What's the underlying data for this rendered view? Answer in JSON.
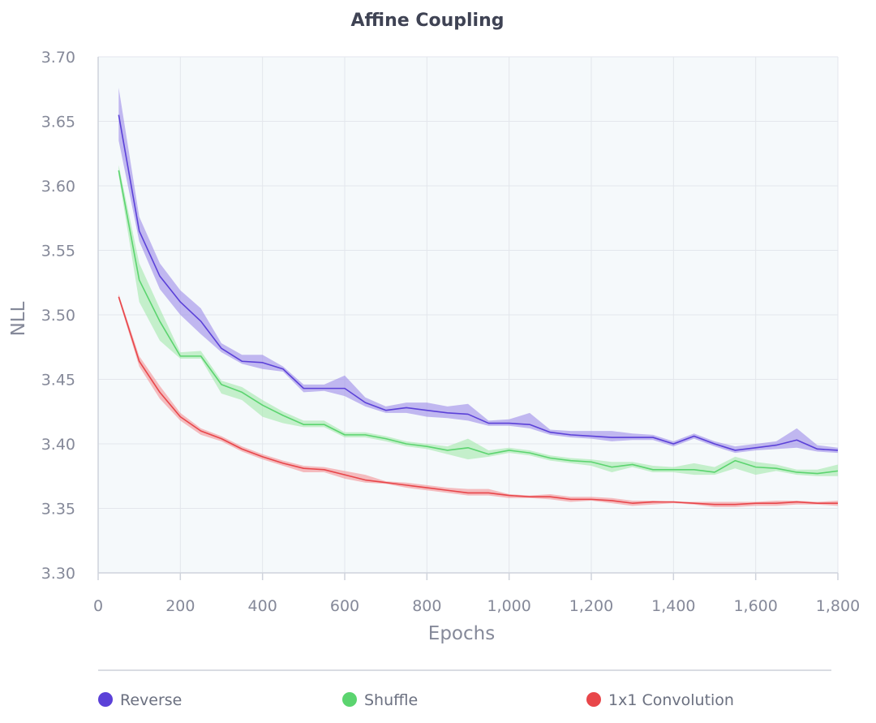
{
  "chart_data": {
    "type": "line",
    "title": "Affine Coupling",
    "xlabel": "Epochs",
    "ylabel": "NLL",
    "xlim": [
      0,
      1800
    ],
    "ylim": [
      3.3,
      3.7
    ],
    "xticks": [
      0,
      200,
      400,
      600,
      800,
      1000,
      1200,
      1400,
      1600,
      1800
    ],
    "xtick_labels": [
      "0",
      "200",
      "400",
      "600",
      "800",
      "1,000",
      "1,200",
      "1,400",
      "1,600",
      "1,800"
    ],
    "yticks": [
      3.3,
      3.35,
      3.4,
      3.45,
      3.5,
      3.55,
      3.6,
      3.65,
      3.7
    ],
    "ytick_labels": [
      "3.30",
      "3.35",
      "3.40",
      "3.45",
      "3.50",
      "3.55",
      "3.60",
      "3.65",
      "3.70"
    ],
    "grid": true,
    "legend_position": "bottom",
    "x": [
      50,
      100,
      150,
      200,
      250,
      300,
      350,
      400,
      450,
      500,
      550,
      600,
      650,
      700,
      750,
      800,
      850,
      900,
      950,
      1000,
      1050,
      1100,
      1150,
      1200,
      1250,
      1300,
      1350,
      1400,
      1450,
      1500,
      1550,
      1600,
      1650,
      1700,
      1750,
      1800
    ],
    "series": [
      {
        "name": "Reverse",
        "color": "#5b41d8",
        "band_color": "#a393ea",
        "values": [
          3.655,
          3.565,
          3.53,
          3.51,
          3.495,
          3.474,
          3.464,
          3.463,
          3.458,
          3.443,
          3.443,
          3.443,
          3.432,
          3.426,
          3.428,
          3.426,
          3.424,
          3.423,
          3.416,
          3.416,
          3.415,
          3.409,
          3.407,
          3.406,
          3.405,
          3.405,
          3.405,
          3.4,
          3.406,
          3.4,
          3.395,
          3.397,
          3.399,
          3.403,
          3.396,
          3.395
        ],
        "lower": [
          3.635,
          3.557,
          3.52,
          3.5,
          3.485,
          3.471,
          3.462,
          3.458,
          3.456,
          3.44,
          3.441,
          3.437,
          3.429,
          3.424,
          3.424,
          3.421,
          3.42,
          3.418,
          3.414,
          3.414,
          3.412,
          3.407,
          3.405,
          3.404,
          3.402,
          3.403,
          3.403,
          3.398,
          3.404,
          3.398,
          3.393,
          3.395,
          3.396,
          3.397,
          3.394,
          3.393
        ],
        "upper": [
          3.676,
          3.576,
          3.54,
          3.519,
          3.505,
          3.478,
          3.469,
          3.469,
          3.46,
          3.446,
          3.446,
          3.453,
          3.436,
          3.429,
          3.432,
          3.432,
          3.429,
          3.431,
          3.418,
          3.419,
          3.424,
          3.411,
          3.41,
          3.41,
          3.41,
          3.408,
          3.407,
          3.402,
          3.408,
          3.402,
          3.398,
          3.4,
          3.402,
          3.412,
          3.399,
          3.397
        ]
      },
      {
        "name": "Shuffle",
        "color": "#5bd46f",
        "band_color": "#a9e9b1",
        "values": [
          3.612,
          3.527,
          3.495,
          3.468,
          3.468,
          3.446,
          3.44,
          3.43,
          3.422,
          3.415,
          3.415,
          3.407,
          3.407,
          3.404,
          3.4,
          3.398,
          3.395,
          3.397,
          3.392,
          3.395,
          3.393,
          3.389,
          3.387,
          3.386,
          3.382,
          3.384,
          3.38,
          3.38,
          3.38,
          3.378,
          3.387,
          3.382,
          3.381,
          3.378,
          3.377,
          3.379
        ],
        "lower": [
          3.608,
          3.51,
          3.48,
          3.466,
          3.466,
          3.439,
          3.434,
          3.421,
          3.416,
          3.413,
          3.413,
          3.405,
          3.405,
          3.402,
          3.398,
          3.396,
          3.392,
          3.388,
          3.39,
          3.393,
          3.391,
          3.387,
          3.385,
          3.383,
          3.378,
          3.382,
          3.378,
          3.378,
          3.376,
          3.376,
          3.381,
          3.376,
          3.379,
          3.376,
          3.375,
          3.375
        ],
        "upper": [
          3.616,
          3.54,
          3.505,
          3.471,
          3.472,
          3.449,
          3.444,
          3.434,
          3.425,
          3.418,
          3.418,
          3.409,
          3.409,
          3.406,
          3.402,
          3.4,
          3.398,
          3.404,
          3.395,
          3.397,
          3.395,
          3.391,
          3.389,
          3.388,
          3.386,
          3.386,
          3.383,
          3.382,
          3.385,
          3.382,
          3.39,
          3.386,
          3.384,
          3.38,
          3.38,
          3.384
        ]
      },
      {
        "name": "1x1 Convolution",
        "color": "#e8464a",
        "band_color": "#f29a9c",
        "values": [
          3.514,
          3.464,
          3.44,
          3.421,
          3.41,
          3.404,
          3.396,
          3.39,
          3.385,
          3.381,
          3.38,
          3.376,
          3.372,
          3.37,
          3.368,
          3.366,
          3.364,
          3.362,
          3.362,
          3.36,
          3.359,
          3.359,
          3.357,
          3.357,
          3.356,
          3.354,
          3.355,
          3.355,
          3.354,
          3.353,
          3.353,
          3.354,
          3.354,
          3.355,
          3.354,
          3.354
        ],
        "lower": [
          3.512,
          3.46,
          3.435,
          3.418,
          3.407,
          3.402,
          3.394,
          3.388,
          3.383,
          3.378,
          3.378,
          3.373,
          3.37,
          3.369,
          3.366,
          3.364,
          3.362,
          3.36,
          3.36,
          3.358,
          3.358,
          3.357,
          3.355,
          3.356,
          3.354,
          3.352,
          3.353,
          3.354,
          3.353,
          3.351,
          3.351,
          3.352,
          3.352,
          3.353,
          3.353,
          3.352
        ],
        "upper": [
          3.516,
          3.468,
          3.445,
          3.424,
          3.412,
          3.406,
          3.398,
          3.392,
          3.387,
          3.383,
          3.382,
          3.379,
          3.376,
          3.371,
          3.37,
          3.368,
          3.366,
          3.365,
          3.365,
          3.361,
          3.36,
          3.361,
          3.359,
          3.359,
          3.358,
          3.356,
          3.356,
          3.355,
          3.355,
          3.355,
          3.355,
          3.355,
          3.356,
          3.356,
          3.355,
          3.356
        ]
      }
    ]
  }
}
